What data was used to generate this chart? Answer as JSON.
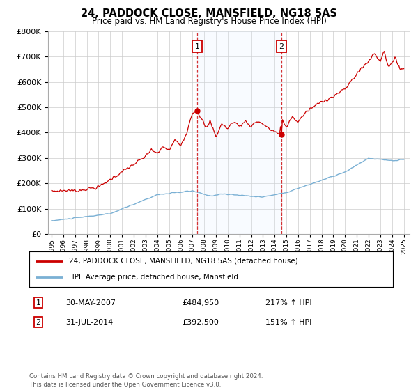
{
  "title": "24, PADDOCK CLOSE, MANSFIELD, NG18 5AS",
  "subtitle": "Price paid vs. HM Land Registry's House Price Index (HPI)",
  "ylim": [
    0,
    800000
  ],
  "yticks": [
    0,
    100000,
    200000,
    300000,
    400000,
    500000,
    600000,
    700000,
    800000
  ],
  "background_color": "#ffffff",
  "plot_bg_color": "#ffffff",
  "grid_color": "#cccccc",
  "line1_color": "#cc0000",
  "line2_color": "#7ab0d4",
  "shade_color": "#ddeeff",
  "sale1_year": 2007.417,
  "sale1_price": 484950,
  "sale2_year": 2014.583,
  "sale2_price": 392500,
  "sale1_date_str": "30-MAY-2007",
  "sale1_price_str": "£484,950",
  "sale1_hpi_str": "217% ↑ HPI",
  "sale2_date_str": "31-JUL-2014",
  "sale2_price_str": "£392,500",
  "sale2_hpi_str": "151% ↑ HPI",
  "legend1_label": "24, PADDOCK CLOSE, MANSFIELD, NG18 5AS (detached house)",
  "legend2_label": "HPI: Average price, detached house, Mansfield",
  "footer": "Contains HM Land Registry data © Crown copyright and database right 2024.\nThis data is licensed under the Open Government Licence v3.0."
}
